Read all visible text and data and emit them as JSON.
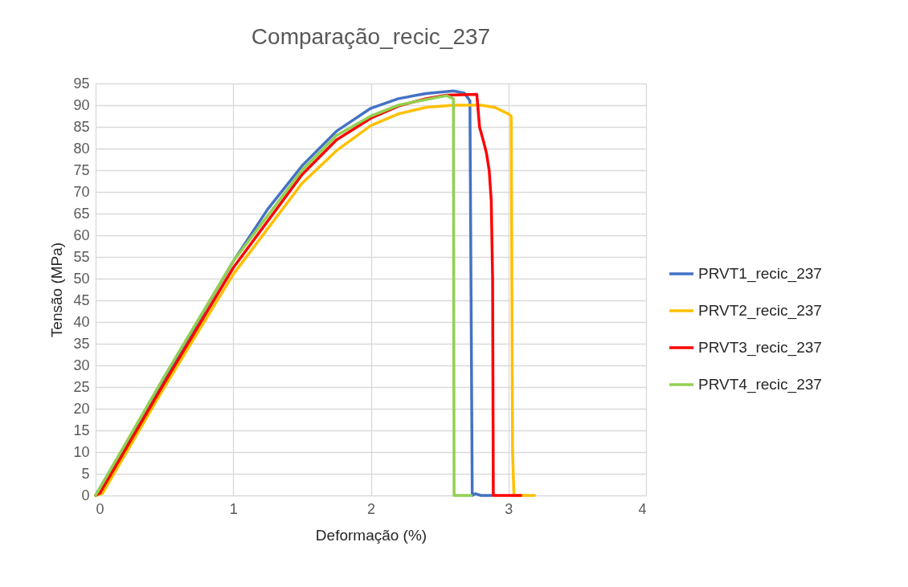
{
  "chart_data": {
    "type": "line",
    "title": "Comparação_recic_237",
    "xlabel": "Deformação (%)",
    "ylabel": "Tensão (MPa)",
    "xlim": [
      0,
      4
    ],
    "xticks": [
      0,
      1,
      2,
      3,
      4
    ],
    "ylim": [
      0,
      95
    ],
    "yticks": [
      0,
      5,
      10,
      15,
      20,
      25,
      30,
      35,
      40,
      45,
      50,
      55,
      60,
      65,
      70,
      75,
      80,
      85,
      90,
      95
    ],
    "grid": true,
    "legend": "right",
    "marker": "none",
    "line_style": "solid",
    "series": [
      {
        "name": "PRVT1_recic_237",
        "color": "#4472c4",
        "x": [
          0,
          0.5,
          1,
          1.25,
          1.5,
          1.75,
          2,
          2.2,
          2.4,
          2.6,
          2.68,
          2.72,
          2.737,
          2.76,
          2.8,
          2.88
        ],
        "values": [
          0,
          27,
          54,
          66,
          76,
          84,
          89.3,
          91.5,
          92.7,
          93.3,
          92.8,
          91,
          0,
          0.4,
          0,
          0
        ]
      },
      {
        "name": "PRVT2_recic_237",
        "color": "#ffc000",
        "x": [
          0,
          0.05,
          0.5,
          1,
          1.5,
          1.75,
          2,
          2.2,
          2.4,
          2.6,
          2.8,
          2.9,
          3.0,
          3.02,
          3.03,
          3.04,
          3.19
        ],
        "values": [
          0,
          0.5,
          25,
          51,
          72,
          79.5,
          85.3,
          88,
          89.5,
          90,
          90,
          89.5,
          88,
          87.5,
          10,
          0,
          0
        ]
      },
      {
        "name": "PRVT3_recic_237",
        "color": "#ff0000",
        "x": [
          0,
          0.03,
          0.5,
          1,
          1.5,
          1.75,
          2,
          2.2,
          2.4,
          2.55,
          2.77,
          2.79,
          2.82,
          2.84,
          2.86,
          2.875,
          2.885,
          2.89,
          3.09
        ],
        "values": [
          0,
          0.5,
          26,
          52.5,
          74,
          82,
          87,
          89.8,
          91.5,
          92.3,
          92.5,
          85,
          81.5,
          79,
          75,
          68,
          50,
          0,
          0
        ]
      },
      {
        "name": "PRVT4_recic_237",
        "color": "#92d050",
        "x": [
          0,
          0.5,
          1,
          1.5,
          1.75,
          2,
          2.2,
          2.4,
          2.55,
          2.6,
          2.605,
          2.73
        ],
        "values": [
          0,
          27.5,
          54,
          75,
          83,
          87.5,
          90,
          91.3,
          92.2,
          91.5,
          0,
          0
        ]
      }
    ]
  }
}
